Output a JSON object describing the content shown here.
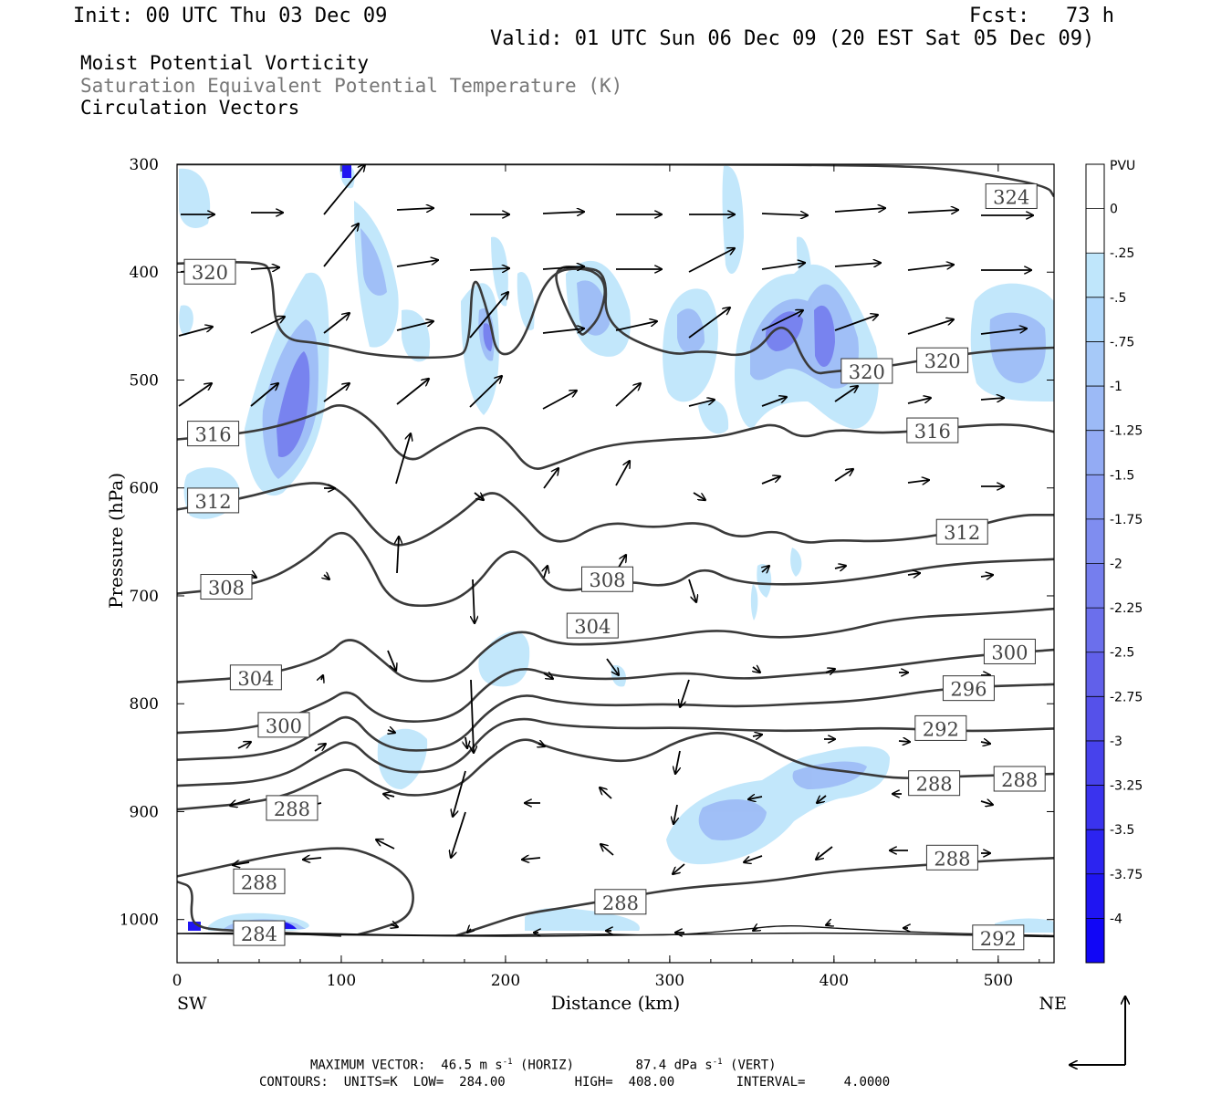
{
  "header": {
    "init": "Init: 00 UTC Thu 03 Dec 09",
    "fcst": "Fcst:   73 h",
    "valid": "Valid: 01 UTC Sun 06 Dec 09 (20 EST Sat 05 Dec 09)"
  },
  "fields": [
    "Moist Potential Vorticity",
    "Saturation Equivalent Potential Temperature (K)",
    "Circulation Vectors"
  ],
  "chart_data": {
    "type": "cross-section",
    "xlabel": "Distance (km)",
    "ylabel": "Pressure (hPa)",
    "x_ticks": [
      0,
      100,
      200,
      300,
      400,
      500
    ],
    "y_ticks": [
      300,
      400,
      500,
      600,
      700,
      800,
      900,
      1000
    ],
    "xlim": [
      0,
      534
    ],
    "ylim": [
      1040,
      300
    ],
    "x_end_labels": {
      "left": "SW",
      "right": "NE"
    },
    "colorbar": {
      "unit": "PVU",
      "labels": [
        "0",
        "-.25",
        "-.5",
        "-.75",
        "-1",
        "-1.25",
        "-1.5",
        "-1.75",
        "-2",
        "-2.25",
        "-2.5",
        "-2.75",
        "-3",
        "-3.25",
        "-3.5",
        "-3.75",
        "-4"
      ],
      "colors": [
        "#ffffff",
        "#ffffff",
        "#bfe6fb",
        "#b0d8fb",
        "#a6c9f8",
        "#9cbaf6",
        "#93abf4",
        "#899cf2",
        "#7f8df0",
        "#757eee",
        "#6b6fec",
        "#6160ea",
        "#5551ea",
        "#4742ec",
        "#3a33ee",
        "#2c24f0",
        "#1f15f2",
        "#1106f6"
      ]
    },
    "contours": [
      {
        "value": 324,
        "label": "324",
        "points": [
          [
            0,
            300
          ],
          [
            100,
            300
          ],
          [
            220,
            300
          ],
          [
            280,
            300
          ],
          [
            440,
            301
          ],
          [
            480,
            306
          ],
          [
            530,
            320
          ],
          [
            534,
            330
          ]
        ],
        "labels_at": [
          [
            508,
            330
          ]
        ]
      },
      {
        "value": 320,
        "label": "320",
        "points": [
          [
            0,
            392
          ],
          [
            50,
            390
          ],
          [
            58,
            398
          ],
          [
            60,
            462
          ],
          [
            90,
            466
          ],
          [
            120,
            478
          ],
          [
            170,
            480
          ],
          [
            178,
            470
          ],
          [
            180,
            395
          ],
          [
            190,
            440
          ],
          [
            195,
            480
          ],
          [
            210,
            470
          ],
          [
            225,
            400
          ],
          [
            250,
            395
          ],
          [
            262,
            410
          ],
          [
            258,
            440
          ],
          [
            250,
            455
          ],
          [
            245,
            460
          ],
          [
            230,
            410
          ],
          [
            232,
            395
          ],
          [
            245,
            395
          ],
          [
            262,
            400
          ],
          [
            260,
            450
          ],
          [
            300,
            478
          ],
          [
            320,
            472
          ],
          [
            350,
            480
          ],
          [
            370,
            440
          ],
          [
            385,
            495
          ],
          [
            400,
            492
          ],
          [
            430,
            488
          ],
          [
            460,
            480
          ],
          [
            500,
            472
          ],
          [
            534,
            470
          ]
        ],
        "labels_at": [
          [
            20,
            400
          ],
          [
            420,
            492
          ],
          [
            466,
            482
          ]
        ]
      },
      {
        "value": 316,
        "label": "316",
        "points": [
          [
            0,
            555
          ],
          [
            50,
            548
          ],
          [
            85,
            532
          ],
          [
            100,
            520
          ],
          [
            120,
            538
          ],
          [
            140,
            580
          ],
          [
            160,
            560
          ],
          [
            185,
            540
          ],
          [
            200,
            555
          ],
          [
            215,
            585
          ],
          [
            230,
            578
          ],
          [
            260,
            560
          ],
          [
            300,
            555
          ],
          [
            330,
            553
          ],
          [
            350,
            545
          ],
          [
            365,
            540
          ],
          [
            380,
            555
          ],
          [
            400,
            545
          ],
          [
            430,
            550
          ],
          [
            470,
            544
          ],
          [
            510,
            540
          ],
          [
            534,
            548
          ]
        ],
        "labels_at": [
          [
            22,
            550
          ],
          [
            460,
            547
          ]
        ]
      },
      {
        "value": 312,
        "label": "312",
        "points": [
          [
            0,
            620
          ],
          [
            40,
            610
          ],
          [
            80,
            593
          ],
          [
            100,
            600
          ],
          [
            125,
            650
          ],
          [
            140,
            655
          ],
          [
            170,
            628
          ],
          [
            190,
            600
          ],
          [
            205,
            615
          ],
          [
            230,
            658
          ],
          [
            260,
            630
          ],
          [
            290,
            638
          ],
          [
            320,
            630
          ],
          [
            340,
            648
          ],
          [
            365,
            638
          ],
          [
            380,
            652
          ],
          [
            400,
            648
          ],
          [
            430,
            650
          ],
          [
            470,
            643
          ],
          [
            510,
            625
          ],
          [
            534,
            625
          ]
        ],
        "labels_at": [
          [
            22,
            612
          ],
          [
            478,
            641
          ]
        ]
      },
      {
        "value": 308,
        "label": "308",
        "points": [
          [
            0,
            698
          ],
          [
            50,
            690
          ],
          [
            80,
            665
          ],
          [
            100,
            635
          ],
          [
            115,
            660
          ],
          [
            130,
            708
          ],
          [
            160,
            710
          ],
          [
            180,
            695
          ],
          [
            200,
            655
          ],
          [
            215,
            665
          ],
          [
            230,
            700
          ],
          [
            270,
            685
          ],
          [
            300,
            693
          ],
          [
            320,
            672
          ],
          [
            340,
            688
          ],
          [
            380,
            690
          ],
          [
            420,
            684
          ],
          [
            470,
            670
          ],
          [
            534,
            666
          ]
        ],
        "labels_at": [
          [
            30,
            692
          ],
          [
            262,
            685
          ]
        ]
      },
      {
        "value": 304,
        "label": "304",
        "points": [
          [
            0,
            780
          ],
          [
            50,
            775
          ],
          [
            90,
            758
          ],
          [
            105,
            735
          ],
          [
            125,
            760
          ],
          [
            140,
            780
          ],
          [
            170,
            778
          ],
          [
            190,
            745
          ],
          [
            210,
            730
          ],
          [
            230,
            745
          ],
          [
            260,
            745
          ],
          [
            290,
            740
          ],
          [
            330,
            730
          ],
          [
            360,
            740
          ],
          [
            400,
            735
          ],
          [
            440,
            720
          ],
          [
            500,
            716
          ],
          [
            534,
            712
          ]
        ],
        "labels_at": [
          [
            48,
            776
          ],
          [
            253,
            728
          ]
        ]
      },
      {
        "value": 300,
        "label": "300",
        "points": [
          [
            0,
            827
          ],
          [
            50,
            823
          ],
          [
            90,
            800
          ],
          [
            105,
            785
          ],
          [
            120,
            810
          ],
          [
            140,
            818
          ],
          [
            170,
            813
          ],
          [
            190,
            780
          ],
          [
            210,
            765
          ],
          [
            230,
            775
          ],
          [
            270,
            778
          ],
          [
            310,
            770
          ],
          [
            340,
            778
          ],
          [
            380,
            773
          ],
          [
            420,
            768
          ],
          [
            480,
            756
          ],
          [
            534,
            750
          ]
        ],
        "labels_at": [
          [
            65,
            820
          ],
          [
            507,
            752
          ]
        ]
      },
      {
        "value": 296,
        "label": "296",
        "points": [
          [
            0,
            852
          ],
          [
            60,
            848
          ],
          [
            90,
            822
          ],
          [
            105,
            808
          ],
          [
            120,
            835
          ],
          [
            140,
            845
          ],
          [
            170,
            840
          ],
          [
            190,
            805
          ],
          [
            210,
            790
          ],
          [
            230,
            798
          ],
          [
            260,
            802
          ],
          [
            300,
            800
          ],
          [
            340,
            803
          ],
          [
            380,
            800
          ],
          [
            420,
            797
          ],
          [
            470,
            785
          ],
          [
            534,
            782
          ]
        ],
        "labels_at": [
          [
            482,
            786
          ]
        ]
      },
      {
        "value": 292,
        "label": "292",
        "points": [
          [
            0,
            876
          ],
          [
            60,
            872
          ],
          [
            90,
            844
          ],
          [
            105,
            832
          ],
          [
            120,
            855
          ],
          [
            140,
            865
          ],
          [
            170,
            860
          ],
          [
            190,
            822
          ],
          [
            210,
            812
          ],
          [
            230,
            820
          ],
          [
            270,
            823
          ],
          [
            310,
            822
          ],
          [
            350,
            825
          ],
          [
            390,
            825
          ],
          [
            430,
            822
          ],
          [
            480,
            826
          ],
          [
            534,
            823
          ]
        ],
        "labels_at": [
          [
            465,
            823
          ]
        ]
      },
      {
        "value": 288,
        "label": "288",
        "points": [
          [
            0,
            898
          ],
          [
            60,
            890
          ],
          [
            90,
            868
          ],
          [
            105,
            858
          ],
          [
            120,
            875
          ],
          [
            140,
            887
          ],
          [
            170,
            880
          ],
          [
            190,
            850
          ],
          [
            210,
            830
          ],
          [
            225,
            840
          ],
          [
            250,
            850
          ],
          [
            280,
            855
          ],
          [
            310,
            830
          ],
          [
            340,
            825
          ],
          [
            380,
            858
          ],
          [
            410,
            863
          ],
          [
            440,
            870
          ],
          [
            480,
            867
          ],
          [
            534,
            865
          ]
        ],
        "labels_at": [
          [
            70,
            897
          ],
          [
            461,
            874
          ],
          [
            513,
            870
          ]
        ]
      },
      {
        "value": 288,
        "label": "288",
        "points": [
          [
            0,
            960
          ],
          [
            30,
            950
          ],
          [
            60,
            940
          ],
          [
            100,
            932
          ],
          [
            120,
            940
          ],
          [
            140,
            958
          ],
          [
            145,
            980
          ],
          [
            140,
            1000
          ],
          [
            120,
            1010
          ],
          [
            110,
            1014
          ]
        ],
        "labels_at": [
          [
            50,
            965
          ]
        ]
      },
      {
        "value": 284,
        "label": "284",
        "points": [
          [
            0,
            965
          ],
          [
            10,
            970
          ],
          [
            8,
            1000
          ],
          [
            15,
            1008
          ],
          [
            30,
            1010
          ],
          [
            60,
            1012
          ],
          [
            100,
            1015
          ]
        ],
        "labels_at": [
          [
            50,
            1013
          ]
        ]
      },
      {
        "value": 288,
        "label": "288",
        "points": [
          [
            170,
            1015
          ],
          [
            190,
            1005
          ],
          [
            210,
            995
          ],
          [
            240,
            988
          ],
          [
            270,
            980
          ],
          [
            310,
            970
          ],
          [
            360,
            965
          ],
          [
            400,
            955
          ],
          [
            450,
            950
          ],
          [
            500,
            945
          ],
          [
            534,
            943
          ]
        ],
        "labels_at": [
          [
            270,
            984
          ],
          [
            472,
            943
          ]
        ]
      },
      {
        "value": 296,
        "label": "296",
        "points": [
          [
            0,
            1013
          ],
          [
            60,
            1012
          ],
          [
            120,
            1014
          ],
          [
            180,
            1015
          ],
          [
            250,
            1013
          ],
          [
            300,
            1015
          ],
          [
            340,
            1010
          ],
          [
            370,
            1005
          ],
          [
            400,
            1008
          ],
          [
            450,
            1012
          ],
          [
            534,
            1015
          ]
        ],
        "labels_at": []
      },
      {
        "value": 292,
        "label": "292",
        "points": [
          [
            0,
            1013
          ],
          [
            100,
            1014
          ],
          [
            200,
            1016
          ],
          [
            300,
            1014
          ],
          [
            400,
            1012
          ],
          [
            500,
            1015
          ],
          [
            534,
            1016
          ]
        ],
        "labels_at": [
          [
            500,
            1017
          ]
        ]
      }
    ],
    "footer": {
      "max_vector_label": "MAXIMUM VECTOR:",
      "max_horiz_value": "46.5 m s",
      "max_horiz_exp": "-1",
      "max_horiz_suffix": " (HORIZ)",
      "max_vert_value": "87.4 dPa s",
      "max_vert_exp": "-1",
      "max_vert_suffix": " (VERT)",
      "contours_line": "CONTOURS:  UNITS=K  LOW=  284.00         HIGH=  408.00        INTERVAL=     4.0000"
    }
  }
}
